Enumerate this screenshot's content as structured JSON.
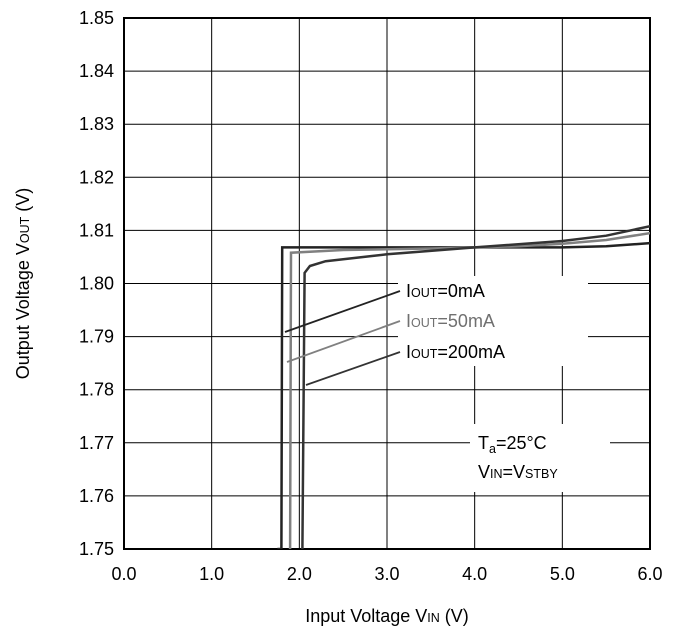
{
  "chart_data": {
    "type": "line",
    "xlabel": {
      "main": "Input Voltage V",
      "sub": "IN",
      "unit": " (V)"
    },
    "ylabel": {
      "main": "Output Voltage V",
      "sub": "OUT",
      "unit": " (V)"
    },
    "xlim": [
      0.0,
      6.0
    ],
    "ylim": [
      1.75,
      1.85
    ],
    "xticks": [
      "0.0",
      "1.0",
      "2.0",
      "3.0",
      "4.0",
      "5.0",
      "6.0"
    ],
    "yticks": [
      "1.75",
      "1.76",
      "1.77",
      "1.78",
      "1.79",
      "1.80",
      "1.81",
      "1.82",
      "1.83",
      "1.84",
      "1.85"
    ],
    "grid": true,
    "series": [
      {
        "name": "IOUT=0mA",
        "label_prefix": "I",
        "label_sub": "OUT",
        "label_suffix": "=0mA",
        "color": "#222222",
        "points": [
          [
            1.75,
            1.75
          ],
          [
            1.795,
            1.75
          ],
          [
            1.805,
            1.8068
          ],
          [
            3.0,
            1.8068
          ],
          [
            4.0,
            1.8068
          ],
          [
            5.0,
            1.8068
          ],
          [
            5.5,
            1.807
          ],
          [
            6.0,
            1.8076
          ]
        ]
      },
      {
        "name": "IOUT=50mA",
        "label_prefix": "I",
        "label_sub": "OUT",
        "label_suffix": "=50mA",
        "color": "#808080",
        "points": [
          [
            1.88,
            1.75
          ],
          [
            1.895,
            1.75
          ],
          [
            1.905,
            1.8058
          ],
          [
            2.5,
            1.8063
          ],
          [
            3.5,
            1.8066
          ],
          [
            4.5,
            1.807
          ],
          [
            5.0,
            1.8075
          ],
          [
            5.5,
            1.8082
          ],
          [
            6.0,
            1.8095
          ]
        ]
      },
      {
        "name": "IOUT=200mA",
        "label_prefix": "I",
        "label_sub": "OUT",
        "label_suffix": "=200mA",
        "color": "#333333",
        "points": [
          [
            2.02,
            1.75
          ],
          [
            2.035,
            1.75
          ],
          [
            2.06,
            1.802
          ],
          [
            2.12,
            1.8033
          ],
          [
            2.3,
            1.8042
          ],
          [
            3.0,
            1.8055
          ],
          [
            4.0,
            1.8068
          ],
          [
            5.0,
            1.808
          ],
          [
            5.5,
            1.809
          ],
          [
            6.0,
            1.8108
          ]
        ]
      }
    ],
    "annotation": {
      "line1_prefix": "T",
      "line1_sub": "a",
      "line1_suffix": "=25°C",
      "line2_prefix": "V",
      "line2_sub1": "IN",
      "line2_mid": "=V",
      "line2_sub2": "STBY"
    }
  }
}
